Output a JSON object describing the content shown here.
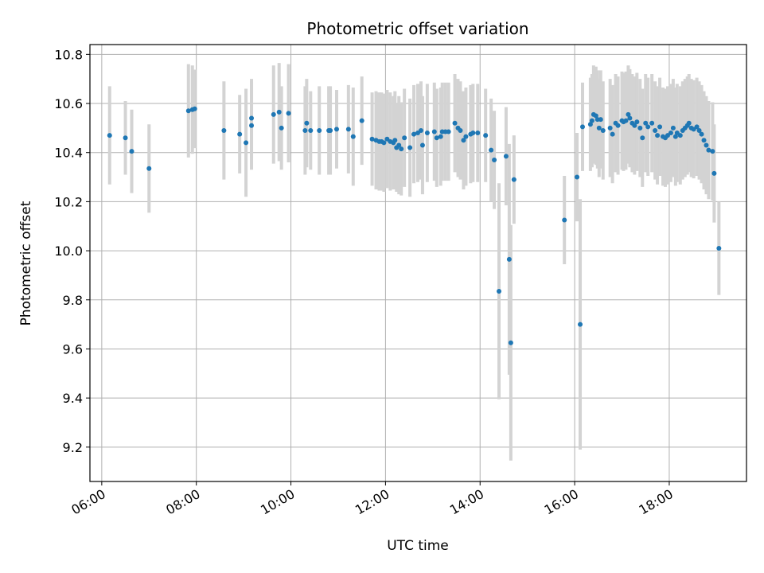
{
  "chart_data": {
    "type": "scatter",
    "title": "Photometric offset variation",
    "xlabel": "UTC time",
    "ylabel": "Photometric offset",
    "x_unit": "hours UTC",
    "xlim": [
      "05:45",
      "19:38"
    ],
    "ylim": [
      9.06,
      10.84
    ],
    "x_ticks": [
      "06:00",
      "08:00",
      "10:00",
      "12:00",
      "14:00",
      "16:00",
      "18:00"
    ],
    "y_ticks": [
      "9.2",
      "9.4",
      "9.6",
      "9.8",
      "10.0",
      "10.2",
      "10.4",
      "10.6",
      "10.8"
    ],
    "grid": true,
    "legend": "none",
    "colors": {
      "marker": "#1f77b4",
      "errorbar": "#d3d3d3",
      "grid": "#b0b0b0"
    },
    "series": [
      {
        "x": [
          "06:10",
          "06:30",
          "06:38",
          "07:00",
          "07:50",
          "07:55",
          "07:58",
          "08:35",
          "08:55",
          "09:03",
          "09:10",
          "09:10",
          "09:38",
          "09:45",
          "09:48",
          "09:57",
          "10:18",
          "10:20",
          "10:25",
          "10:36",
          "10:48",
          "10:50",
          "10:58",
          "11:13",
          "11:19",
          "11:30",
          "11:43",
          "11:48",
          "11:52",
          "11:55",
          "11:58",
          "12:02",
          "12:06",
          "12:10",
          "12:12",
          "12:14",
          "12:17",
          "12:20",
          "12:24",
          "12:31",
          "12:36",
          "12:41",
          "12:45",
          "12:47",
          "12:53",
          "13:02",
          "13:05",
          "13:10",
          "13:12",
          "13:16",
          "13:20",
          "13:28",
          "13:32",
          "13:35",
          "13:39",
          "13:42",
          "13:48",
          "13:51",
          "13:57",
          "14:07",
          "14:14",
          "14:18",
          "14:24",
          "14:33",
          "14:37",
          "14:39",
          "14:43",
          "15:47",
          "16:03",
          "16:07",
          "16:10",
          "16:20",
          "16:22",
          "16:24",
          "16:27",
          "16:29",
          "16:31",
          "16:33",
          "16:36",
          "16:45",
          "16:48",
          "16:52",
          "16:55",
          "17:00",
          "17:02",
          "17:05",
          "17:08",
          "17:10",
          "17:13",
          "17:16",
          "17:19",
          "17:23",
          "17:26",
          "17:30",
          "17:33",
          "17:38",
          "17:42",
          "17:45",
          "17:48",
          "17:52",
          "17:55",
          "17:58",
          "18:02",
          "18:05",
          "18:08",
          "18:10",
          "18:14",
          "18:17",
          "18:20",
          "18:23",
          "18:25",
          "18:28",
          "18:31",
          "18:35",
          "18:38",
          "18:41",
          "18:44",
          "18:47",
          "18:50",
          "18:55",
          "18:57",
          "19:03"
        ],
        "y": [
          10.47,
          10.46,
          10.405,
          10.335,
          10.57,
          10.575,
          10.578,
          10.49,
          10.475,
          10.44,
          10.51,
          10.54,
          10.555,
          10.565,
          10.5,
          10.56,
          10.49,
          10.52,
          10.49,
          10.49,
          10.49,
          10.49,
          10.495,
          10.495,
          10.465,
          10.53,
          10.455,
          10.45,
          10.445,
          10.445,
          10.44,
          10.455,
          10.445,
          10.44,
          10.45,
          10.42,
          10.43,
          10.415,
          10.46,
          10.42,
          10.475,
          10.48,
          10.49,
          10.43,
          10.48,
          10.485,
          10.46,
          10.465,
          10.485,
          10.485,
          10.485,
          10.52,
          10.5,
          10.49,
          10.45,
          10.465,
          10.475,
          10.48,
          10.48,
          10.47,
          10.41,
          10.37,
          9.835,
          10.385,
          9.965,
          9.625,
          10.29,
          10.125,
          10.3,
          9.7,
          10.505,
          10.515,
          10.53,
          10.555,
          10.55,
          10.535,
          10.5,
          10.535,
          10.49,
          10.5,
          10.475,
          10.52,
          10.51,
          10.53,
          10.525,
          10.53,
          10.555,
          10.54,
          10.52,
          10.51,
          10.525,
          10.5,
          10.46,
          10.52,
          10.505,
          10.52,
          10.49,
          10.47,
          10.505,
          10.465,
          10.46,
          10.47,
          10.48,
          10.5,
          10.465,
          10.48,
          10.47,
          10.49,
          10.5,
          10.51,
          10.52,
          10.5,
          10.495,
          10.505,
          10.49,
          10.475,
          10.45,
          10.43,
          10.41,
          10.405,
          10.315,
          10.01
        ],
        "yerr": [
          0.2,
          0.15,
          0.17,
          0.18,
          0.19,
          0.18,
          0.16,
          0.2,
          0.16,
          0.22,
          0.18,
          0.16,
          0.2,
          0.2,
          0.17,
          0.2,
          0.18,
          0.18,
          0.16,
          0.18,
          0.18,
          0.18,
          0.16,
          0.18,
          0.2,
          0.18,
          0.19,
          0.2,
          0.2,
          0.2,
          0.2,
          0.2,
          0.2,
          0.19,
          0.2,
          0.18,
          0.2,
          0.19,
          0.2,
          0.2,
          0.2,
          0.2,
          0.2,
          0.2,
          0.2,
          0.2,
          0.2,
          0.2,
          0.2,
          0.2,
          0.2,
          0.2,
          0.2,
          0.2,
          0.2,
          0.2,
          0.2,
          0.2,
          0.2,
          0.19,
          0.21,
          0.2,
          0.44,
          0.2,
          0.47,
          0.48,
          0.18,
          0.18,
          0.18,
          0.51,
          0.18,
          0.19,
          0.19,
          0.2,
          0.2,
          0.2,
          0.2,
          0.2,
          0.2,
          0.2,
          0.2,
          0.2,
          0.2,
          0.2,
          0.2,
          0.2,
          0.2,
          0.2,
          0.2,
          0.2,
          0.2,
          0.2,
          0.2,
          0.2,
          0.2,
          0.2,
          0.2,
          0.2,
          0.2,
          0.2,
          0.2,
          0.2,
          0.2,
          0.2,
          0.2,
          0.2,
          0.2,
          0.2,
          0.2,
          0.2,
          0.2,
          0.2,
          0.2,
          0.2,
          0.2,
          0.2,
          0.2,
          0.2,
          0.2,
          0.2,
          0.2,
          0.19
        ]
      }
    ]
  }
}
